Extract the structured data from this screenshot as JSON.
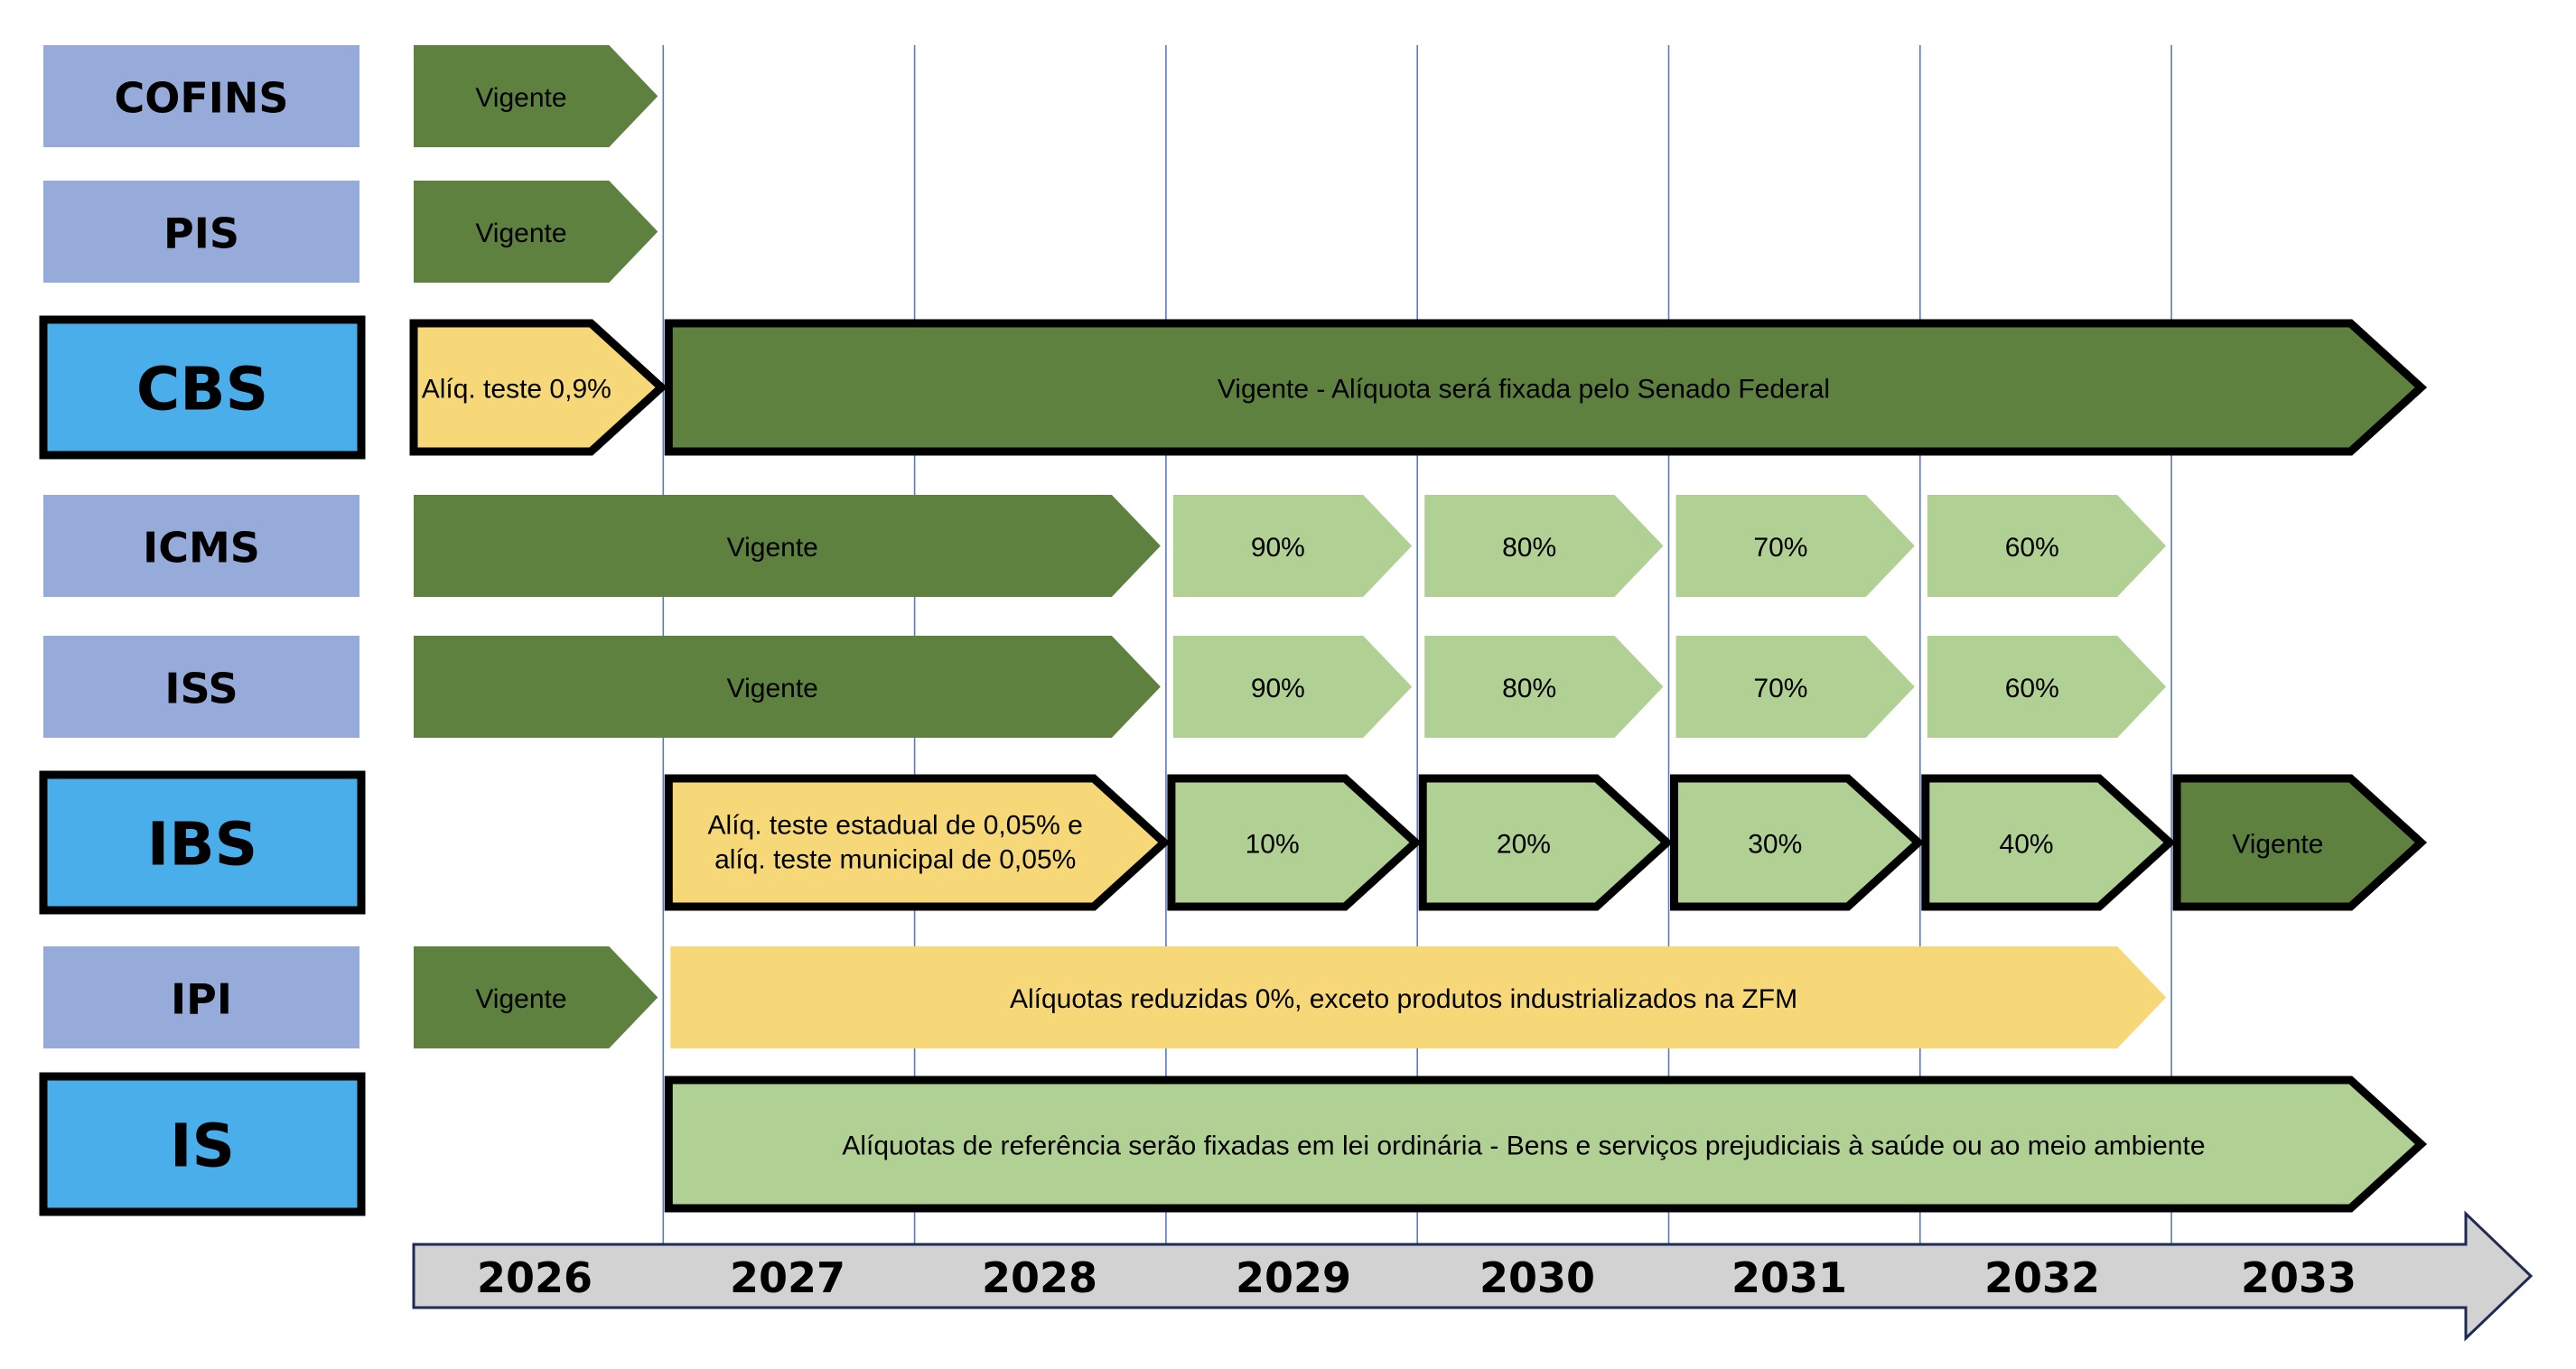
{
  "colors": {
    "dark_green": "#5e8140",
    "light_green": "#b1d094",
    "yellow": "#f7d878",
    "old_tax_label": "#97abda",
    "new_tax_label": "#4aaeea",
    "axis_fill": "#d3d2d3",
    "gridline": "#5b7ac4"
  },
  "timeline": {
    "years": [
      "2026",
      "2027",
      "2028",
      "2029",
      "2030",
      "2031",
      "2032",
      "2033"
    ]
  },
  "taxes": [
    {
      "name": "COFINS",
      "kind": "old",
      "segments": [
        {
          "text": "Vigente",
          "color": "dark_green",
          "start": "2026",
          "end": "2026"
        }
      ]
    },
    {
      "name": "PIS",
      "kind": "old",
      "segments": [
        {
          "text": "Vigente",
          "color": "dark_green",
          "start": "2026",
          "end": "2026"
        }
      ]
    },
    {
      "name": "CBS",
      "kind": "new",
      "segments": [
        {
          "text": "Alíq. teste 0,9%",
          "color": "yellow",
          "start": "2026",
          "end": "2026"
        },
        {
          "text": "Vigente - Alíquota será fixada pelo Senado Federal",
          "color": "dark_green",
          "start": "2027",
          "end": "2033"
        }
      ]
    },
    {
      "name": "ICMS",
      "kind": "old",
      "segments": [
        {
          "text": "Vigente",
          "color": "dark_green",
          "start": "2026",
          "end": "2028"
        },
        {
          "text": "90%",
          "color": "light_green",
          "start": "2029",
          "end": "2029"
        },
        {
          "text": "80%",
          "color": "light_green",
          "start": "2030",
          "end": "2030"
        },
        {
          "text": "70%",
          "color": "light_green",
          "start": "2031",
          "end": "2031"
        },
        {
          "text": "60%",
          "color": "light_green",
          "start": "2032",
          "end": "2032"
        }
      ]
    },
    {
      "name": "ISS",
      "kind": "old",
      "segments": [
        {
          "text": "Vigente",
          "color": "dark_green",
          "start": "2026",
          "end": "2028"
        },
        {
          "text": "90%",
          "color": "light_green",
          "start": "2029",
          "end": "2029"
        },
        {
          "text": "80%",
          "color": "light_green",
          "start": "2030",
          "end": "2030"
        },
        {
          "text": "70%",
          "color": "light_green",
          "start": "2031",
          "end": "2031"
        },
        {
          "text": "60%",
          "color": "light_green",
          "start": "2032",
          "end": "2032"
        }
      ]
    },
    {
      "name": "IBS",
      "kind": "new",
      "segments": [
        {
          "text": [
            "Alíq. teste estadual de 0,05% e",
            "alíq. teste municipal de 0,05%"
          ],
          "color": "yellow",
          "start": "2027",
          "end": "2028"
        },
        {
          "text": "10%",
          "color": "light_green",
          "start": "2029",
          "end": "2029"
        },
        {
          "text": "20%",
          "color": "light_green",
          "start": "2030",
          "end": "2030"
        },
        {
          "text": "30%",
          "color": "light_green",
          "start": "2031",
          "end": "2031"
        },
        {
          "text": "40%",
          "color": "light_green",
          "start": "2032",
          "end": "2032"
        },
        {
          "text": "Vigente",
          "color": "dark_green",
          "start": "2033",
          "end": "2033"
        }
      ]
    },
    {
      "name": "IPI",
      "kind": "old",
      "segments": [
        {
          "text": "Vigente",
          "color": "dark_green",
          "start": "2026",
          "end": "2026"
        },
        {
          "text": "Alíquotas reduzidas 0%, exceto produtos industrializados na ZFM",
          "color": "yellow",
          "start": "2027",
          "end": "2032"
        }
      ]
    },
    {
      "name": "IS",
      "kind": "new",
      "segments": [
        {
          "text": "Alíquotas de referência serão fixadas em lei ordinária - Bens e serviços prejudiciais à saúde ou ao meio ambiente",
          "color": "light_green",
          "start": "2027",
          "end": "2033"
        }
      ]
    }
  ]
}
